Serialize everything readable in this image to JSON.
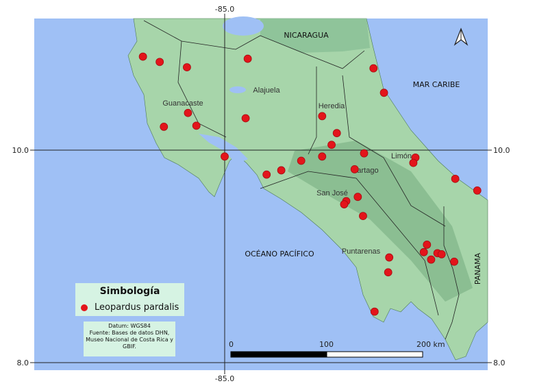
{
  "map": {
    "colors": {
      "water": "#9fc0f5",
      "land": "#a7d5aa",
      "point": "#e3151b",
      "grid": "#222222"
    },
    "graticule": {
      "longitude_labels": [
        "-85.0"
      ],
      "latitude_labels": [
        "10.0",
        "8.0"
      ]
    },
    "labels": {
      "nicaragua": "NICARAGUA",
      "mar_caribe": "MAR CARIBE",
      "alajuela": "Alajuela",
      "guanacaste": "Guanacaste",
      "heredia": "Heredia",
      "limon": "Limón",
      "cartago": "Cartago",
      "san_jose": "San José",
      "puntarenas": "Puntarenas",
      "oceano_pacifico": "OCÉANO PACÍFICO",
      "panama": "PANAMA"
    },
    "north_arrow": "north-arrow-icon",
    "scale_bar": {
      "labels": [
        "0",
        "100",
        "200 km"
      ]
    },
    "points": [
      [
        -85.78,
        10.88
      ],
      [
        -85.62,
        10.83
      ],
      [
        -85.36,
        10.78
      ],
      [
        -84.78,
        10.86
      ],
      [
        -83.58,
        10.77
      ],
      [
        -83.48,
        10.54
      ],
      [
        -85.35,
        10.35
      ],
      [
        -85.58,
        10.22
      ],
      [
        -85.27,
        10.23
      ],
      [
        -84.8,
        10.3
      ],
      [
        -84.07,
        10.32
      ],
      [
        -83.93,
        10.16
      ],
      [
        -83.98,
        10.05
      ],
      [
        -85.0,
        9.94
      ],
      [
        -84.27,
        9.9
      ],
      [
        -84.07,
        9.94
      ],
      [
        -83.67,
        9.97
      ],
      [
        -83.18,
        9.93
      ],
      [
        -83.2,
        9.88
      ],
      [
        -84.6,
        9.77
      ],
      [
        -84.46,
        9.81
      ],
      [
        -83.76,
        9.82
      ],
      [
        -82.8,
        9.73
      ],
      [
        -82.59,
        9.62
      ],
      [
        -83.73,
        9.56
      ],
      [
        -83.84,
        9.52
      ],
      [
        -83.86,
        9.49
      ],
      [
        -83.68,
        9.38
      ],
      [
        -83.07,
        9.11
      ],
      [
        -83.1,
        9.04
      ],
      [
        -83.03,
        8.97
      ],
      [
        -82.97,
        9.03
      ],
      [
        -82.93,
        9.02
      ],
      [
        -82.81,
        8.95
      ],
      [
        -83.43,
        8.99
      ],
      [
        -83.44,
        8.85
      ],
      [
        -83.57,
        8.48
      ]
    ]
  },
  "legend": {
    "title": "Simbología",
    "item": "Leopardus pardalis"
  },
  "info": {
    "lines": [
      "Datum: WGS84",
      "Fuente: Bases de datos DHN,",
      "Museo Nacional de Costa Rica y",
      "GBIF."
    ]
  }
}
